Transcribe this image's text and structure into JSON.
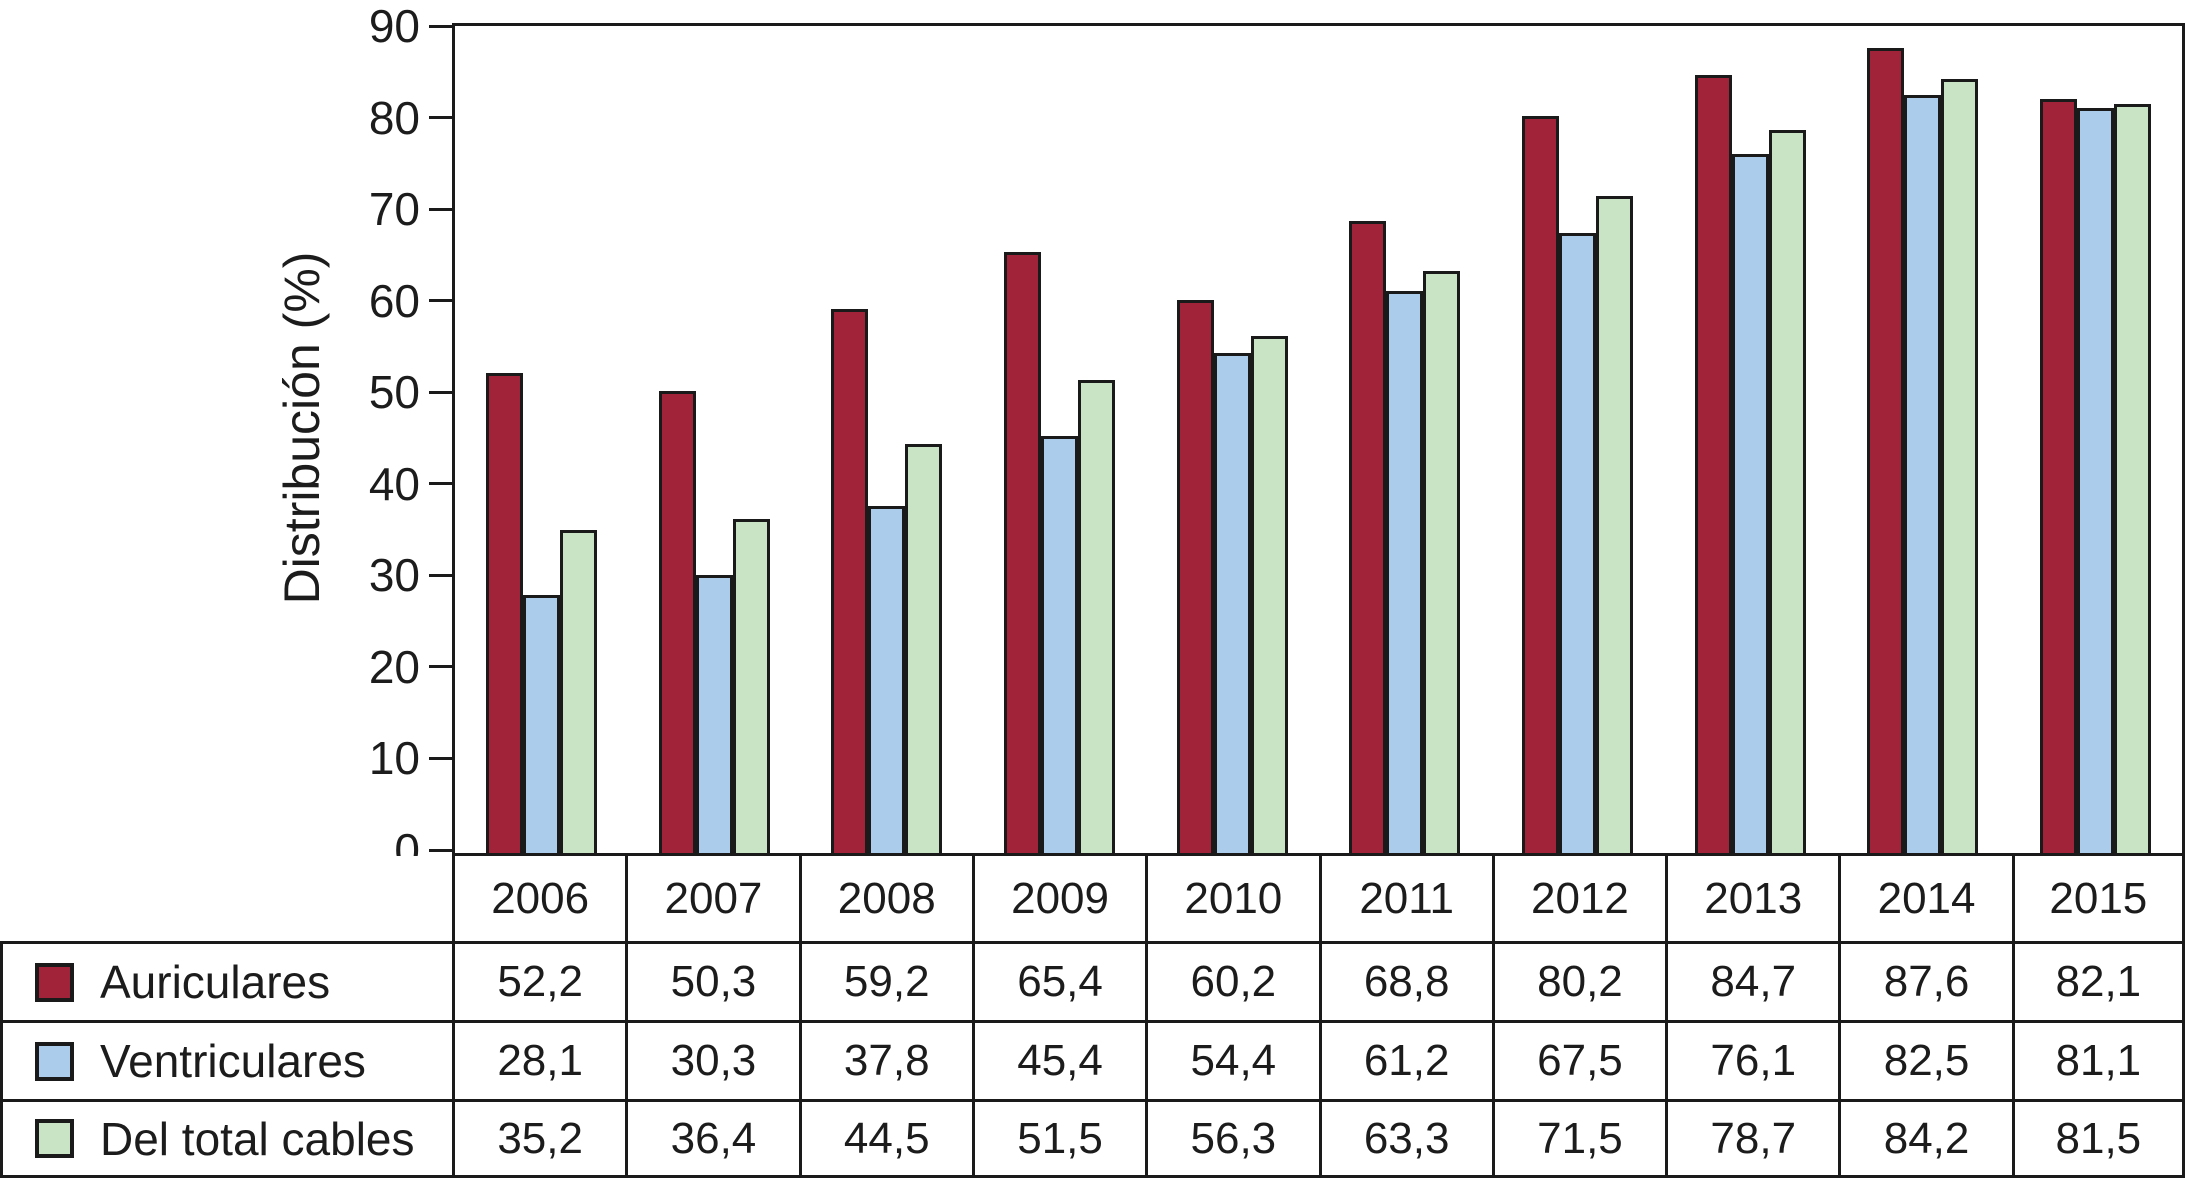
{
  "chart_data": {
    "type": "bar",
    "title": "",
    "ylabel": "Distribución (%)",
    "xlabel": "",
    "ylim": [
      0,
      90
    ],
    "yticks": [
      0,
      10,
      20,
      30,
      40,
      50,
      60,
      70,
      80,
      90
    ],
    "grid": false,
    "legend_position": "table-left",
    "decimal_separator": ",",
    "bar_outline_color": "#1a1a1a",
    "categories": [
      "2006",
      "2007",
      "2008",
      "2009",
      "2010",
      "2011",
      "2012",
      "2013",
      "2014",
      "2015"
    ],
    "series": [
      {
        "name": "Auriculares",
        "color": "#A02339",
        "values": [
          52.2,
          50.3,
          59.2,
          65.4,
          60.2,
          68.8,
          80.2,
          84.7,
          87.6,
          82.1
        ]
      },
      {
        "name": "Ventriculares",
        "color": "#ABCDEB",
        "values": [
          28.1,
          30.3,
          37.8,
          45.4,
          54.4,
          61.2,
          67.5,
          76.1,
          82.5,
          81.1
        ]
      },
      {
        "name": "Del total cables",
        "color": "#C8E4C4",
        "values": [
          35.2,
          36.4,
          44.5,
          51.5,
          56.3,
          63.3,
          71.5,
          78.7,
          84.2,
          81.5
        ]
      }
    ]
  }
}
